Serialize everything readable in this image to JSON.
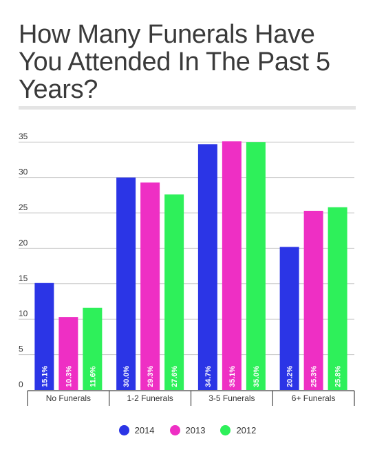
{
  "chart_data": {
    "type": "bar",
    "title": "How Many Funerals Have You Attended In The Past 5 Years?",
    "categories": [
      "No Funerals",
      "1-2 Funerals",
      "3-5 Funerals",
      "6+ Funerals"
    ],
    "series": [
      {
        "name": "2014",
        "color": "#2b35e6",
        "values": [
          15.1,
          30.0,
          34.7,
          20.2
        ],
        "labels": [
          "15.1%",
          "30.0%",
          "34.7%",
          "20.2%"
        ]
      },
      {
        "name": "2013",
        "color": "#ee2fc4",
        "values": [
          10.3,
          29.3,
          35.1,
          25.3
        ],
        "labels": [
          "10.3%",
          "29.3%",
          "35.1%",
          "25.3%"
        ]
      },
      {
        "name": "2012",
        "color": "#2ef05a",
        "values": [
          11.6,
          27.6,
          35.0,
          25.8
        ],
        "labels": [
          "11.6%",
          "27.6%",
          "35.0%",
          "25.8%"
        ]
      }
    ],
    "yticks": [
      0,
      5,
      10,
      15,
      20,
      25,
      30,
      35
    ],
    "ylim": [
      0,
      35
    ],
    "grid": true,
    "legend_position": "bottom-center"
  }
}
